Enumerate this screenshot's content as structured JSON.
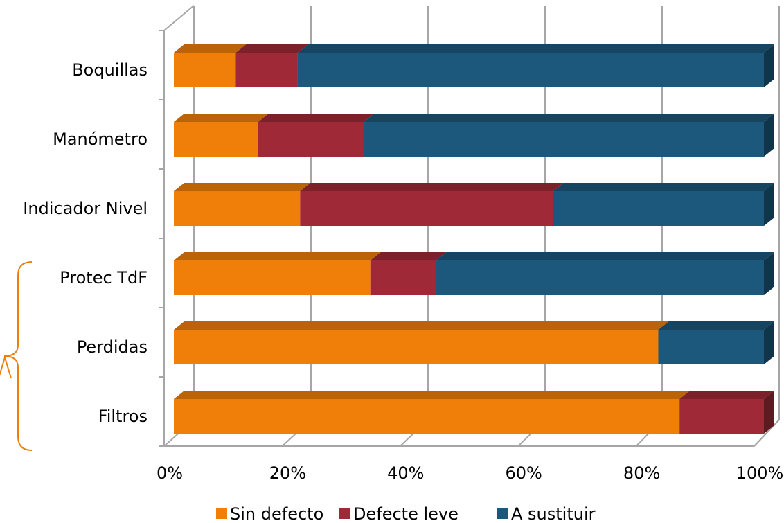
{
  "chart_data": {
    "type": "bar",
    "orientation": "horizontal",
    "stacked": "percent",
    "three_d": true,
    "categories": [
      "Boquillas",
      "Manómetro",
      "Indicador Nivel",
      "Protec TdF",
      "Perdidas",
      "Filtros"
    ],
    "series": [
      {
        "name": "Sin defecto",
        "color": "#f07f09",
        "values": [
          10.5,
          14.3,
          21.4,
          33.3,
          82.1,
          85.7
        ]
      },
      {
        "name": "Defecte leve",
        "color": "#9f2936",
        "values": [
          10.5,
          17.9,
          42.9,
          11.1,
          0,
          14.3
        ]
      },
      {
        "name": "A sustituir",
        "color": "#1b587c",
        "values": [
          79.0,
          67.8,
          35.7,
          55.6,
          17.9,
          0
        ]
      }
    ],
    "x_ticks": [
      "0%",
      "20%",
      "40%",
      "60%",
      "80%",
      "100%"
    ],
    "xlim": [
      0,
      100
    ],
    "grid": true,
    "legend": "bottom",
    "annotation": "orange bracket beside Protec TdF, Perdidas and Filtros",
    "annotation_color": "#f07f09"
  }
}
